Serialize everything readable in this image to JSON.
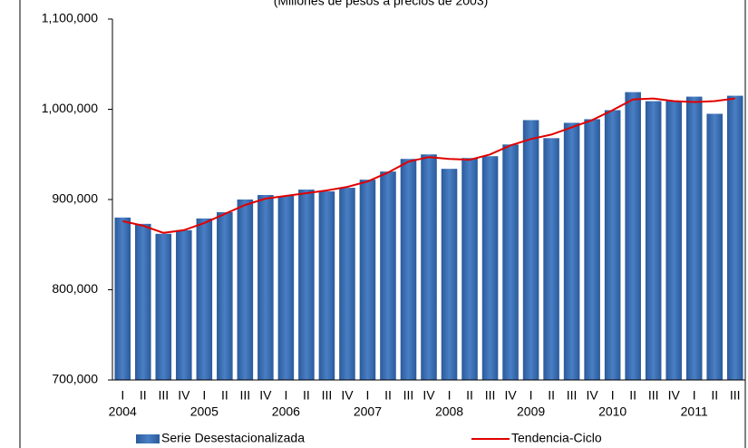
{
  "chart_data": {
    "type": "bar-line",
    "subtitle": "(Millones de pesos a precios de 2003)",
    "categories": [
      "I",
      "II",
      "III",
      "IV",
      "I",
      "II",
      "III",
      "IV",
      "I",
      "II",
      "III",
      "IV",
      "I",
      "II",
      "III",
      "IV",
      "I",
      "II",
      "III",
      "IV",
      "I",
      "II",
      "III",
      "IV",
      "I",
      "II",
      "III",
      "IV",
      "I",
      "II",
      "III"
    ],
    "years": [
      "2004",
      "2005",
      "2006",
      "2007",
      "2008",
      "2009",
      "2010",
      "2011"
    ],
    "series": [
      {
        "name": "Serie Desestacionalizada",
        "color": "#3b6fb5",
        "kind": "bar",
        "values": [
          880000,
          873000,
          862000,
          866000,
          879000,
          886000,
          900000,
          905000,
          904000,
          911000,
          909000,
          913000,
          922000,
          931000,
          945000,
          950000,
          934000,
          946000,
          948000,
          961000,
          988000,
          968000,
          985000,
          989000,
          999000,
          1019000,
          1009000,
          1009000,
          1014000,
          995000,
          1015000
        ]
      },
      {
        "name": "Tendencia-Ciclo",
        "color": "#e00000",
        "kind": "line",
        "values": [
          876000,
          871000,
          863000,
          866000,
          874000,
          884000,
          894000,
          901000,
          904000,
          907000,
          910000,
          914000,
          920000,
          930000,
          942000,
          947000,
          945000,
          944000,
          950000,
          960000,
          967000,
          972000,
          980000,
          988000,
          999000,
          1011000,
          1012000,
          1009000,
          1008000,
          1009000,
          1012000
        ]
      }
    ],
    "ylim": [
      700000,
      1100000
    ],
    "yticks": [
      {
        "value": 700000,
        "label": "700,000"
      },
      {
        "value": 800000,
        "label": "800,000"
      },
      {
        "value": 900000,
        "label": "900,000"
      },
      {
        "value": 1000000,
        "label": "1,000,000"
      },
      {
        "value": 1100000,
        "label": "1,100,000"
      }
    ],
    "legend": "bottom"
  }
}
